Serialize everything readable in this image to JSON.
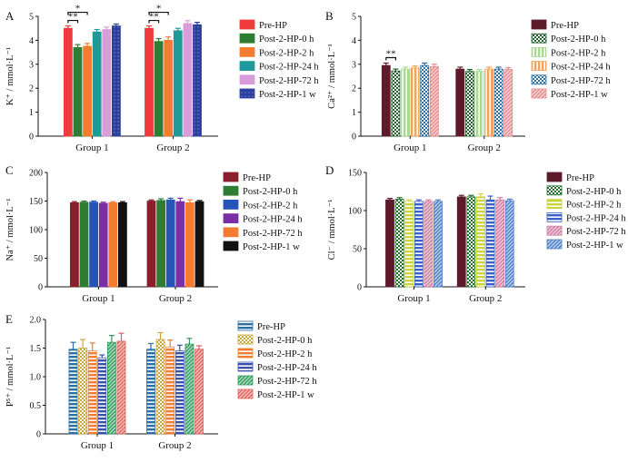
{
  "chart_data": [
    {
      "panel": "A",
      "type": "bar",
      "ylabel": "K⁺ / mmol·L⁻¹",
      "ylim": [
        0,
        5
      ],
      "yticks": [
        "0",
        "1",
        "2",
        "3",
        "4",
        "5"
      ],
      "categories": [
        "Group 1",
        "Group 2"
      ],
      "series": [
        {
          "name": "Pre-HP",
          "values": [
            4.5,
            4.5
          ],
          "errors": [
            0.1,
            0.1
          ],
          "color": "#ef3b3b",
          "pattern": "solid"
        },
        {
          "name": "Post-2-HP-0 h",
          "values": [
            3.7,
            3.95
          ],
          "errors": [
            0.12,
            0.12
          ],
          "color": "#2e7d32",
          "pattern": "solid"
        },
        {
          "name": "Post-2-HP-2 h",
          "values": [
            3.75,
            4.0
          ],
          "errors": [
            0.12,
            0.14
          ],
          "color": "#f47c30",
          "pattern": "solid"
        },
        {
          "name": "Post-2-HP-24 h",
          "values": [
            4.35,
            4.4
          ],
          "errors": [
            0.1,
            0.1
          ],
          "color": "#1f9a9a",
          "pattern": "solid"
        },
        {
          "name": "Post-2-HP-72 h",
          "values": [
            4.45,
            4.7
          ],
          "errors": [
            0.1,
            0.12
          ],
          "color": "#d79cd9",
          "pattern": "solid"
        },
        {
          "name": "Post-2-HP-1 w",
          "values": [
            4.6,
            4.65
          ],
          "errors": [
            0.08,
            0.1
          ],
          "color": "#2c3e9e",
          "pattern": "dots"
        }
      ],
      "significance": [
        {
          "group": 0,
          "from": 0,
          "to": 2,
          "label": "*"
        },
        {
          "group": 0,
          "from": 0,
          "to": 1,
          "label": "**"
        },
        {
          "group": 1,
          "from": 0,
          "to": 2,
          "label": "*"
        },
        {
          "group": 1,
          "from": 0,
          "to": 1,
          "label": "**"
        }
      ]
    },
    {
      "panel": "B",
      "type": "bar",
      "ylabel": "Ca²⁺ / mmol·L⁻¹",
      "ylim": [
        0,
        5
      ],
      "yticks": [
        "0",
        "1",
        "2",
        "3",
        "4",
        "5"
      ],
      "categories": [
        "Group 1",
        "Group 2"
      ],
      "series": [
        {
          "name": "Pre-HP",
          "values": [
            2.95,
            2.8
          ],
          "errors": [
            0.1,
            0.08
          ],
          "color": "#5c1a2a",
          "pattern": "solid"
        },
        {
          "name": "Post-2-HP-0 h",
          "values": [
            2.72,
            2.7
          ],
          "errors": [
            0.08,
            0.08
          ],
          "color": "#1f5f2a",
          "pattern": "checker"
        },
        {
          "name": "Post-2-HP-2 h",
          "values": [
            2.8,
            2.7
          ],
          "errors": [
            0.08,
            0.08
          ],
          "color": "#a7d88f",
          "pattern": "vstripe"
        },
        {
          "name": "Post-2-HP-24 h",
          "values": [
            2.85,
            2.8
          ],
          "errors": [
            0.08,
            0.08
          ],
          "color": "#f2a25a",
          "pattern": "vstripe"
        },
        {
          "name": "Post-2-HP-72 h",
          "values": [
            2.95,
            2.8
          ],
          "errors": [
            0.1,
            0.08
          ],
          "color": "#2c6fa6",
          "pattern": "checker"
        },
        {
          "name": "Post-2-HP-1 w",
          "values": [
            2.9,
            2.78
          ],
          "errors": [
            0.1,
            0.08
          ],
          "color": "#e58a8a",
          "pattern": "diag"
        }
      ],
      "significance": [
        {
          "group": 0,
          "from": 0,
          "to": 1,
          "label": "**"
        }
      ]
    },
    {
      "panel": "C",
      "type": "bar",
      "ylabel": "Na⁺ / mmol·L⁻¹",
      "ylim": [
        0,
        200
      ],
      "yticks": [
        "0",
        "50",
        "100",
        "150",
        "200"
      ],
      "categories": [
        "Group 1",
        "Group 2"
      ],
      "series": [
        {
          "name": "Pre-HP",
          "values": [
            147,
            150
          ],
          "errors": [
            2,
            2
          ],
          "color": "#8b1e2d",
          "pattern": "solid"
        },
        {
          "name": "Post-2-HP-0 h",
          "values": [
            148,
            151
          ],
          "errors": [
            2,
            3
          ],
          "color": "#2e7d32",
          "pattern": "solid"
        },
        {
          "name": "Post-2-HP-2 h",
          "values": [
            148,
            152
          ],
          "errors": [
            2,
            3
          ],
          "color": "#2754b8",
          "pattern": "solid"
        },
        {
          "name": "Post-2-HP-24 h",
          "values": [
            146,
            149
          ],
          "errors": [
            2,
            6
          ],
          "color": "#7b2fa5",
          "pattern": "solid"
        },
        {
          "name": "Post-2-HP-72 h",
          "values": [
            147,
            147
          ],
          "errors": [
            2,
            5
          ],
          "color": "#f47c30",
          "pattern": "solid"
        },
        {
          "name": "Post-2-HP-1 w",
          "values": [
            147,
            149
          ],
          "errors": [
            2,
            2
          ],
          "color": "#111111",
          "pattern": "solid"
        }
      ],
      "significance": []
    },
    {
      "panel": "D",
      "type": "bar",
      "ylabel": "Cl⁻ / mmol·L⁻¹",
      "ylim": [
        0,
        150
      ],
      "yticks": [
        "0",
        "50",
        "100",
        "150"
      ],
      "categories": [
        "Group 1",
        "Group 2"
      ],
      "series": [
        {
          "name": "Pre-HP",
          "values": [
            114,
            118
          ],
          "errors": [
            2,
            2
          ],
          "color": "#5c1a2a",
          "pattern": "solid"
        },
        {
          "name": "Post-2-HP-0 h",
          "values": [
            115,
            118
          ],
          "errors": [
            2,
            2
          ],
          "color": "#1f6f2a",
          "pattern": "checker"
        },
        {
          "name": "Post-2-HP-2 h",
          "values": [
            112,
            118
          ],
          "errors": [
            2,
            4
          ],
          "color": "#c9d43a",
          "pattern": "hstripe"
        },
        {
          "name": "Post-2-HP-24 h",
          "values": [
            112,
            114
          ],
          "errors": [
            2,
            5
          ],
          "color": "#3b5fc9",
          "pattern": "hstripe"
        },
        {
          "name": "Post-2-HP-72 h",
          "values": [
            112,
            114
          ],
          "errors": [
            2,
            3
          ],
          "color": "#d07aa0",
          "pattern": "diag"
        },
        {
          "name": "Post-2-HP-1 w",
          "values": [
            112,
            113
          ],
          "errors": [
            2,
            2
          ],
          "color": "#4a7ec9",
          "pattern": "diag"
        }
      ],
      "significance": []
    },
    {
      "panel": "E",
      "type": "bar",
      "ylabel": "P⁵⁺ / mmol·L⁻¹",
      "ylim": [
        0,
        2.0
      ],
      "yticks": [
        "0",
        "0.5",
        "1.0",
        "1.5",
        "2.0"
      ],
      "categories": [
        "Group 1",
        "Group 2"
      ],
      "series": [
        {
          "name": "Pre-HP",
          "values": [
            1.48,
            1.48
          ],
          "errors": [
            0.12,
            0.1
          ],
          "color": "#2c6fa6",
          "pattern": "hstripe"
        },
        {
          "name": "Post-2-HP-0 h",
          "values": [
            1.5,
            1.65
          ],
          "errors": [
            0.15,
            0.12
          ],
          "color": "#c9a63a",
          "pattern": "checker"
        },
        {
          "name": "Post-2-HP-2 h",
          "values": [
            1.45,
            1.52
          ],
          "errors": [
            0.14,
            0.12
          ],
          "color": "#f47c30",
          "pattern": "hstripe"
        },
        {
          "name": "Post-2-HP-24 h",
          "values": [
            1.33,
            1.45
          ],
          "errors": [
            0.05,
            0.1
          ],
          "color": "#3b4fb0",
          "pattern": "hstripe"
        },
        {
          "name": "Post-2-HP-72 h",
          "values": [
            1.6,
            1.57
          ],
          "errors": [
            0.12,
            0.1
          ],
          "color": "#2e9a5a",
          "pattern": "diag"
        },
        {
          "name": "Post-2-HP-1 w",
          "values": [
            1.62,
            1.48
          ],
          "errors": [
            0.14,
            0.06
          ],
          "color": "#e0605a",
          "pattern": "diag"
        }
      ],
      "significance": []
    }
  ]
}
